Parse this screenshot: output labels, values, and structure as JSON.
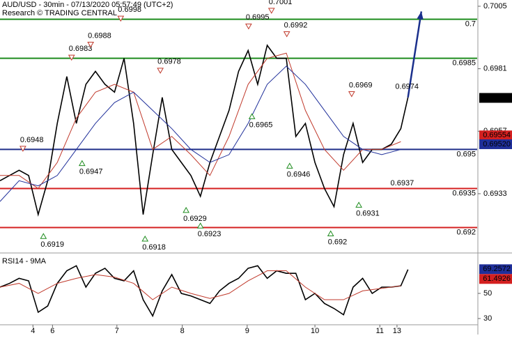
{
  "chart_data": [
    {
      "type": "line",
      "title": "AUD/USD - 30min - 07/13/2020 05:57:49 (UTC+2)",
      "subtitle": "Research © TRADING CENTRAL",
      "xlim": [
        0,
        100
      ],
      "ylim": [
        0.69105,
        0.70074
      ],
      "yticks": [
        0.7005,
        0.6981,
        0.6957,
        0.6933
      ],
      "series": [
        {
          "color": "#000000",
          "x": [
            0,
            2,
            4,
            6,
            8,
            10,
            12,
            14,
            16,
            18,
            20,
            22,
            24,
            26,
            28,
            30,
            32,
            34,
            36,
            38,
            40,
            42,
            44,
            46,
            48,
            50,
            52,
            54,
            56,
            58,
            60,
            62,
            64,
            66,
            68,
            70,
            72,
            74,
            76,
            78,
            80,
            82,
            84,
            85.5
          ],
          "values": [
            0.6938,
            0.694,
            0.6942,
            0.694,
            0.6925,
            0.6938,
            0.696,
            0.6978,
            0.696,
            0.6975,
            0.698,
            0.6975,
            0.6972,
            0.6985,
            0.696,
            0.6925,
            0.6948,
            0.697,
            0.695,
            0.6945,
            0.694,
            0.6932,
            0.6945,
            0.6955,
            0.6965,
            0.698,
            0.6988,
            0.6975,
            0.699,
            0.6985,
            0.6985,
            0.6955,
            0.696,
            0.6945,
            0.6935,
            0.6928,
            0.6948,
            0.696,
            0.6945,
            0.695,
            0.695,
            0.6952,
            0.6958,
            0.697
          ]
        },
        {
          "color": "#c0392b",
          "x": [
            0,
            4,
            8,
            12,
            16,
            20,
            24,
            28,
            32,
            36,
            40,
            44,
            48,
            52,
            56,
            60,
            64,
            68,
            72,
            76,
            80,
            84
          ],
          "values": [
            0.694,
            0.694,
            0.6935,
            0.6945,
            0.6962,
            0.6972,
            0.6975,
            0.6972,
            0.695,
            0.6955,
            0.6948,
            0.694,
            0.6955,
            0.6975,
            0.6985,
            0.6987,
            0.6965,
            0.695,
            0.6942,
            0.695,
            0.695,
            0.6953
          ]
        },
        {
          "color": "#1f2f9a",
          "x": [
            0,
            4,
            8,
            12,
            16,
            20,
            24,
            28,
            32,
            36,
            40,
            44,
            48,
            52,
            56,
            60,
            64,
            68,
            72,
            76,
            80,
            84
          ],
          "values": [
            0.693,
            0.6938,
            0.6936,
            0.694,
            0.695,
            0.696,
            0.6968,
            0.6972,
            0.6965,
            0.6958,
            0.695,
            0.6945,
            0.6948,
            0.696,
            0.6975,
            0.6982,
            0.6975,
            0.6965,
            0.6955,
            0.695,
            0.6948,
            0.695
          ]
        }
      ],
      "forecast": {
        "color": "#1a2f8c",
        "x": [
          85.5,
          88.3
        ],
        "values": [
          0.697,
          0.7003
        ]
      },
      "levels": [
        {
          "value": 0.7,
          "color": "#1e8c1e"
        },
        {
          "value": 0.6985,
          "color": "#1e8c1e"
        },
        {
          "value": 0.695,
          "color": "#1f2f8a"
        },
        {
          "value": 0.6935,
          "color": "#d42020"
        },
        {
          "value": 0.692,
          "color": "#d42020"
        }
      ],
      "annotations": [
        {
          "x": 4.8,
          "value": 0.6948,
          "kind": "down"
        },
        {
          "x": 9.1,
          "value": 0.6919,
          "kind": "up"
        },
        {
          "x": 15,
          "value": 0.6983,
          "kind": "down"
        },
        {
          "x": 17.2,
          "value": 0.6947,
          "kind": "up"
        },
        {
          "x": 19,
          "value": 0.6988,
          "kind": "down"
        },
        {
          "x": 25.3,
          "value": 0.6998,
          "kind": "down"
        },
        {
          "x": 30.4,
          "value": 0.6918,
          "kind": "up"
        },
        {
          "x": 33.6,
          "value": 0.6978,
          "kind": "down"
        },
        {
          "x": 39,
          "value": 0.6929,
          "kind": "up"
        },
        {
          "x": 42,
          "value": 0.6923,
          "kind": "up"
        },
        {
          "x": 52.1,
          "value": 0.6995,
          "kind": "down"
        },
        {
          "x": 52.8,
          "value": 0.6965,
          "kind": "up"
        },
        {
          "x": 56.9,
          "value": 0.7001,
          "kind": "down"
        },
        {
          "x": 60.1,
          "value": 0.6992,
          "kind": "down"
        },
        {
          "x": 60.7,
          "value": 0.6946,
          "kind": "up"
        },
        {
          "x": 69.3,
          "value": 0.692,
          "kind": "up"
        },
        {
          "x": 73.7,
          "value": 0.6969,
          "kind": "down"
        },
        {
          "x": 75.2,
          "value": 0.6931,
          "kind": "up"
        },
        {
          "x": 83,
          "value": 0.6937,
          "kind": "label"
        },
        {
          "x": 84,
          "value": 0.6974,
          "kind": "label"
        }
      ],
      "tags": [
        {
          "value": 0.69554,
          "color": "#d42020"
        },
        {
          "value": 0.6952,
          "label": "0.69520",
          "color": "#1f2f9a"
        },
        {
          "value": 0.69698,
          "color": "#000000"
        }
      ]
    },
    {
      "type": "line",
      "title": "RSI14 - 9MA",
      "xlim": [
        0,
        100
      ],
      "ylim": [
        25.6,
        79.4
      ],
      "yticks": [
        30,
        50
      ],
      "xticks": [
        {
          "value": 6.9,
          "label": "4"
        },
        {
          "value": 11,
          "label": "6"
        },
        {
          "value": 24.5,
          "label": "7"
        },
        {
          "value": 38.2,
          "label": "8"
        },
        {
          "value": 51.8,
          "label": "9"
        },
        {
          "value": 66,
          "label": "10"
        },
        {
          "value": 79.6,
          "label": "11"
        },
        {
          "value": 83.2,
          "label": "13"
        }
      ],
      "series": [
        {
          "color": "#000000",
          "x": [
            0,
            2,
            4,
            6,
            8,
            10,
            12,
            14,
            16,
            18,
            20,
            22,
            24,
            26,
            28,
            30,
            32,
            34,
            36,
            38,
            40,
            42,
            44,
            46,
            48,
            50,
            52,
            54,
            56,
            58,
            60,
            62,
            64,
            66,
            68,
            70,
            72,
            74,
            76,
            78,
            80,
            82,
            84,
            85.5
          ],
          "values": [
            55,
            58,
            62,
            60,
            35,
            40,
            58,
            68,
            72,
            55,
            66,
            70,
            62,
            60,
            68,
            45,
            32,
            52,
            65,
            50,
            48,
            45,
            42,
            52,
            58,
            62,
            70,
            72,
            62,
            68,
            66,
            66,
            45,
            50,
            42,
            38,
            33,
            55,
            62,
            50,
            55,
            55,
            56,
            69
          ]
        },
        {
          "color": "#c0392b",
          "x": [
            0,
            4,
            8,
            12,
            16,
            20,
            24,
            28,
            32,
            36,
            40,
            44,
            48,
            52,
            56,
            60,
            64,
            68,
            72,
            76,
            80,
            84
          ],
          "values": [
            55,
            58,
            50,
            58,
            62,
            65,
            63,
            58,
            45,
            55,
            50,
            46,
            50,
            60,
            68,
            68,
            55,
            45,
            45,
            52,
            54,
            56
          ]
        }
      ],
      "tags": [
        {
          "value": 69.2572,
          "color": "#1f2f9a"
        },
        {
          "value": 61.4926,
          "color": "#d42020"
        }
      ]
    }
  ]
}
